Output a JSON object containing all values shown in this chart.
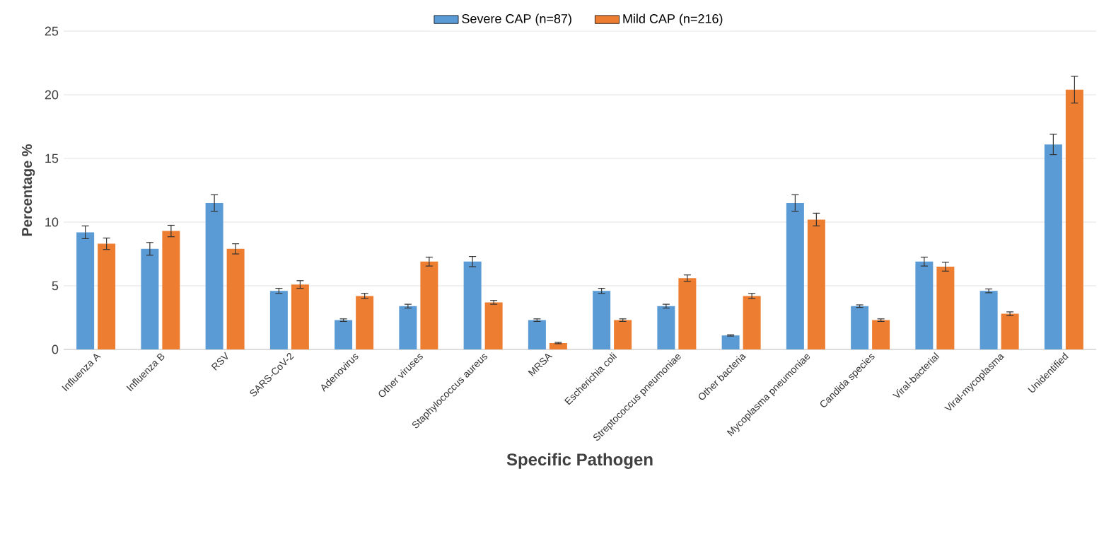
{
  "chart_data": {
    "type": "bar",
    "xlabel": "Specific  Pathogen",
    "ylabel": "Percentage  %",
    "categories": [
      "Influenza A",
      "Influenza B",
      "RSV",
      "SARS-CoV-2",
      "Adenovirus",
      "Other viruses",
      "Staphylococcus aureus",
      "MRSA",
      "Escherichia coli",
      "Streptococcus pneumoniae",
      "Other bacteria",
      "Mycoplasma pneumoniae",
      "Candida species",
      "Viral-bacterial",
      "Viral-mycoplasma",
      "Unidentified"
    ],
    "series": [
      {
        "name": "Severe CAP (n=87)",
        "color": "#5b9bd5",
        "values": [
          9.2,
          7.9,
          11.5,
          4.6,
          2.3,
          3.4,
          6.9,
          2.3,
          4.6,
          3.4,
          1.1,
          11.5,
          3.4,
          6.9,
          4.6,
          16.1
        ],
        "errors": [
          0.5,
          0.5,
          0.65,
          0.2,
          0.1,
          0.15,
          0.4,
          0.1,
          0.2,
          0.15,
          0.05,
          0.65,
          0.1,
          0.35,
          0.15,
          0.8
        ]
      },
      {
        "name": "Mild CAP (n=216)",
        "color": "#ed7d31",
        "values": [
          8.3,
          9.3,
          7.9,
          5.1,
          4.2,
          6.9,
          3.7,
          0.5,
          2.3,
          5.6,
          4.2,
          10.2,
          2.3,
          6.5,
          2.8,
          20.4
        ],
        "errors": [
          0.45,
          0.45,
          0.4,
          0.3,
          0.2,
          0.35,
          0.15,
          0.05,
          0.1,
          0.25,
          0.2,
          0.5,
          0.1,
          0.35,
          0.15,
          1.05
        ]
      }
    ],
    "ylim": [
      0,
      25
    ],
    "yticks": [
      0,
      5,
      10,
      15,
      20,
      25
    ],
    "grid": "y",
    "legend": "top"
  }
}
